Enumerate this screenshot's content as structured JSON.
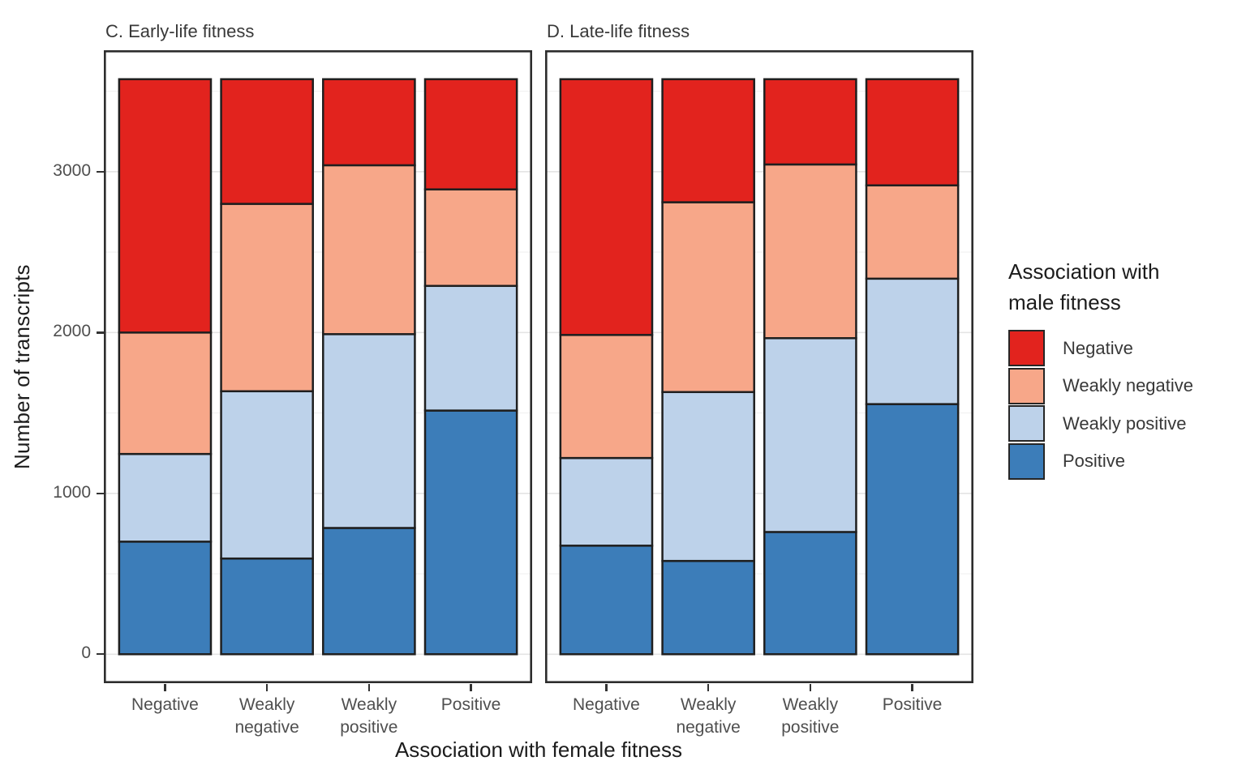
{
  "chart_data": {
    "type": "bar",
    "variant": "stacked-vertical",
    "xlabel": "Association with female fitness",
    "ylabel": "Number of transcripts",
    "yticks": [
      0,
      1000,
      2000,
      3000
    ],
    "ytick_labels": [
      "0",
      "1000",
      "2000",
      "3000"
    ],
    "minor_gridlines": [
      500,
      1500,
      2500,
      3500
    ],
    "ylim": [
      -180,
      3755
    ],
    "bar_total": 3575,
    "categories": [
      {
        "label_lines": [
          "Negative"
        ]
      },
      {
        "label_lines": [
          "Weakly",
          "negative"
        ]
      },
      {
        "label_lines": [
          "Weakly",
          "positive"
        ]
      },
      {
        "label_lines": [
          "Positive"
        ]
      }
    ],
    "stack_order_bottom_to_top": [
      "Positive",
      "Weakly positive",
      "Weakly negative",
      "Negative"
    ],
    "legend": {
      "title": [
        "Association with",
        "male fitness"
      ],
      "entries": [
        {
          "label": "Negative",
          "color": "#e2231e"
        },
        {
          "label": "Weakly negative",
          "color": "#f7a789"
        },
        {
          "label": "Weakly positive",
          "color": "#bdd2ea"
        },
        {
          "label": "Positive",
          "color": "#3c7db9"
        }
      ]
    },
    "panels": [
      {
        "title": "C. Early-life fitness",
        "bars": [
          {
            "category": "Negative",
            "segments": {
              "Positive": 700,
              "Weakly positive": 545,
              "Weakly negative": 755,
              "Negative": 1575
            }
          },
          {
            "category": "Weakly negative",
            "segments": {
              "Positive": 595,
              "Weakly positive": 1040,
              "Weakly negative": 1165,
              "Negative": 775
            }
          },
          {
            "category": "Weakly positive",
            "segments": {
              "Positive": 785,
              "Weakly positive": 1205,
              "Weakly negative": 1050,
              "Negative": 535
            }
          },
          {
            "category": "Positive",
            "segments": {
              "Positive": 1515,
              "Weakly positive": 775,
              "Weakly negative": 600,
              "Negative": 685
            }
          }
        ]
      },
      {
        "title": "D. Late-life fitness",
        "bars": [
          {
            "category": "Negative",
            "segments": {
              "Positive": 675,
              "Weakly positive": 545,
              "Weakly negative": 765,
              "Negative": 1590
            }
          },
          {
            "category": "Weakly negative",
            "segments": {
              "Positive": 580,
              "Weakly positive": 1050,
              "Weakly negative": 1180,
              "Negative": 765
            }
          },
          {
            "category": "Weakly positive",
            "segments": {
              "Positive": 760,
              "Weakly positive": 1205,
              "Weakly negative": 1080,
              "Negative": 530
            }
          },
          {
            "category": "Positive",
            "segments": {
              "Positive": 1555,
              "Weakly positive": 780,
              "Weakly negative": 580,
              "Negative": 660
            }
          }
        ]
      }
    ],
    "style": {
      "bar_stroke": "#1f1f1f",
      "panel_border": "#2d2d2d",
      "major_grid": "#e4e4e4",
      "minor_grid": "#f1f1f1",
      "tick_color": "#333333",
      "tick_label_color": "#4f4f4f",
      "title_color": "#1c1c1c",
      "panel_background": "#ffffff"
    }
  }
}
